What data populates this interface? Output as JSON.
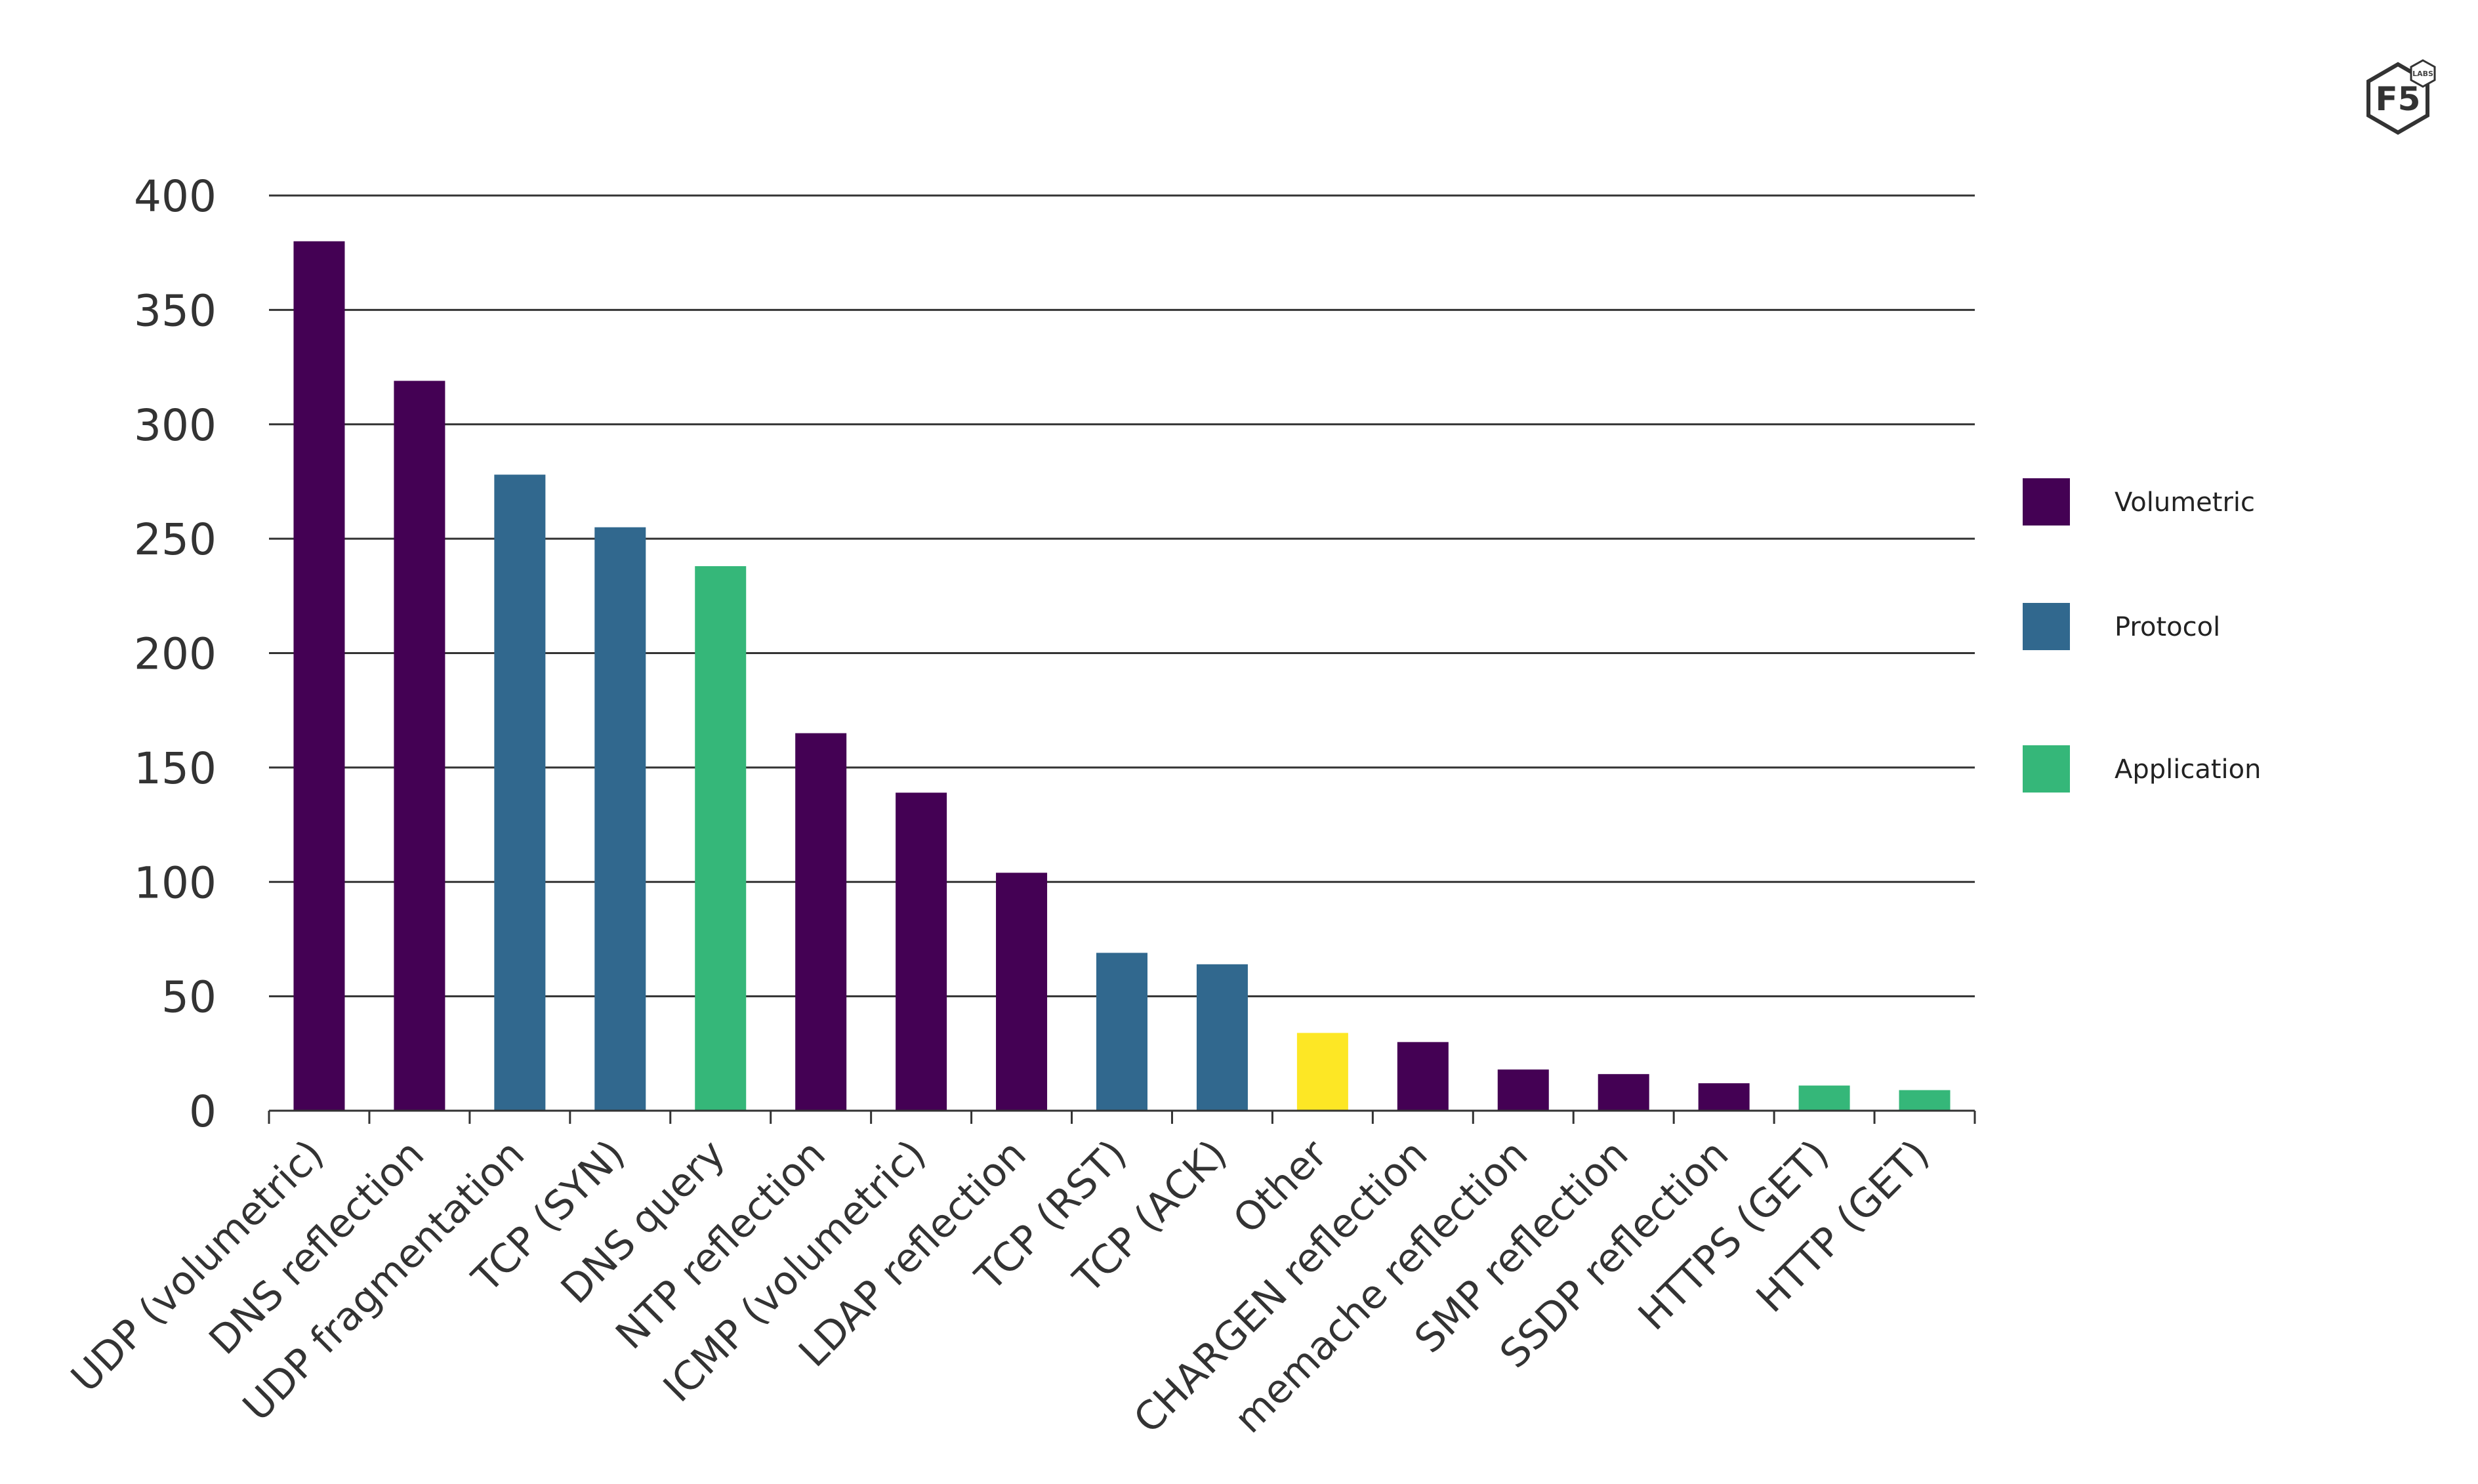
{
  "logo": {
    "brand": "F5",
    "sub": "LABS"
  },
  "chart_data": {
    "type": "bar",
    "title": "",
    "xlabel": "",
    "ylabel": "",
    "ylim": [
      0,
      400
    ],
    "yticks": [
      0,
      50,
      100,
      150,
      200,
      250,
      300,
      350,
      400
    ],
    "grid": true,
    "legend_position": "right",
    "categories": [
      "UDP (volumetric)",
      "DNS reflection",
      "UDP fragmentation",
      "TCP (SYN)",
      "DNS query",
      "NTP reflection",
      "ICMP (volumetric)",
      "LDAP reflection",
      "TCP (RST)",
      "TCP (ACK)",
      "Other",
      "CHARGEN reflection",
      "memache reflection",
      "SMP reflection",
      "SSDP reflection",
      "HTTPS (GET)",
      "HTTP (GET)"
    ],
    "values": [
      380,
      319,
      278,
      255,
      238,
      165,
      139,
      104,
      69,
      64,
      34,
      30,
      18,
      16,
      12,
      11,
      9
    ],
    "bar_types": [
      "Volumetric",
      "Volumetric",
      "Protocol",
      "Protocol",
      "Application",
      "Volumetric",
      "Volumetric",
      "Volumetric",
      "Protocol",
      "Protocol",
      "Other",
      "Volumetric",
      "Volumetric",
      "Volumetric",
      "Volumetric",
      "Application",
      "Application"
    ],
    "legend": [
      {
        "name": "Volumetric",
        "color": "#440154"
      },
      {
        "name": "Protocol",
        "color": "#31688e"
      },
      {
        "name": "Application",
        "color": "#35b779"
      }
    ],
    "colors": {
      "Volumetric": "#440154",
      "Protocol": "#31688e",
      "Application": "#35b779",
      "Other": "#fde725"
    }
  }
}
